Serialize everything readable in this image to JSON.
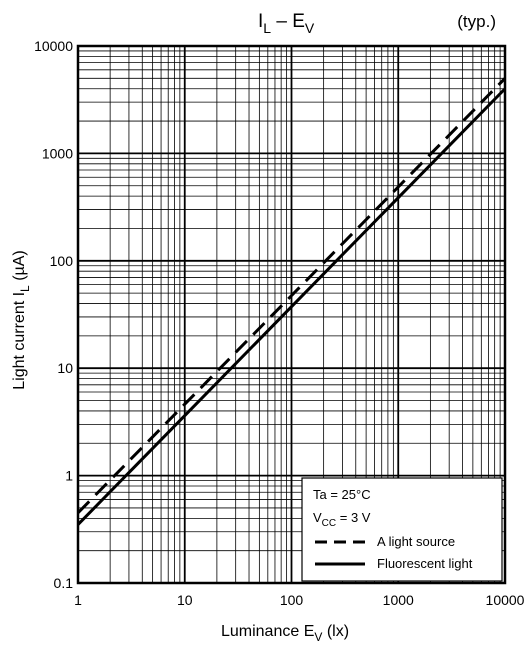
{
  "chart_data": {
    "type": "line",
    "title": {
      "main": "I",
      "main_sub": "L",
      "dash": " – E",
      "dash_sub": "V"
    },
    "title_note": "(typ.)",
    "xlabel": {
      "main": "Luminance   E",
      "sub": "V",
      "unit": "   (lx)"
    },
    "ylabel": {
      "main": "Light current   I",
      "sub": "L",
      "unit": "   (µA)"
    },
    "x_scale": "log",
    "y_scale": "log",
    "xlim": [
      1,
      10000
    ],
    "ylim": [
      0.1,
      10000
    ],
    "x_ticks": [
      {
        "value": 1,
        "label": "1"
      },
      {
        "value": 10,
        "label": "10"
      },
      {
        "value": 100,
        "label": "100"
      },
      {
        "value": 1000,
        "label": "1000"
      },
      {
        "value": 10000,
        "label": "10000"
      }
    ],
    "y_ticks": [
      {
        "value": 0.1,
        "label": "0.1"
      },
      {
        "value": 1,
        "label": "1"
      },
      {
        "value": 10,
        "label": "10"
      },
      {
        "value": 100,
        "label": "100"
      },
      {
        "value": 1000,
        "label": "1000"
      },
      {
        "value": 10000,
        "label": "10000"
      }
    ],
    "grid": true,
    "legend_position": "bottom-right",
    "conditions": {
      "ta": "Ta = 25°C",
      "vcc_prefix": "V",
      "vcc_sub": "CC",
      "vcc_suffix": " = 3 V"
    },
    "series": [
      {
        "name": "A light source",
        "style": "dashed",
        "x": [
          1,
          10000
        ],
        "y": [
          0.45,
          5000
        ]
      },
      {
        "name": "Fluorescent light",
        "style": "solid",
        "x": [
          1,
          10000
        ],
        "y": [
          0.35,
          4000
        ]
      }
    ]
  }
}
